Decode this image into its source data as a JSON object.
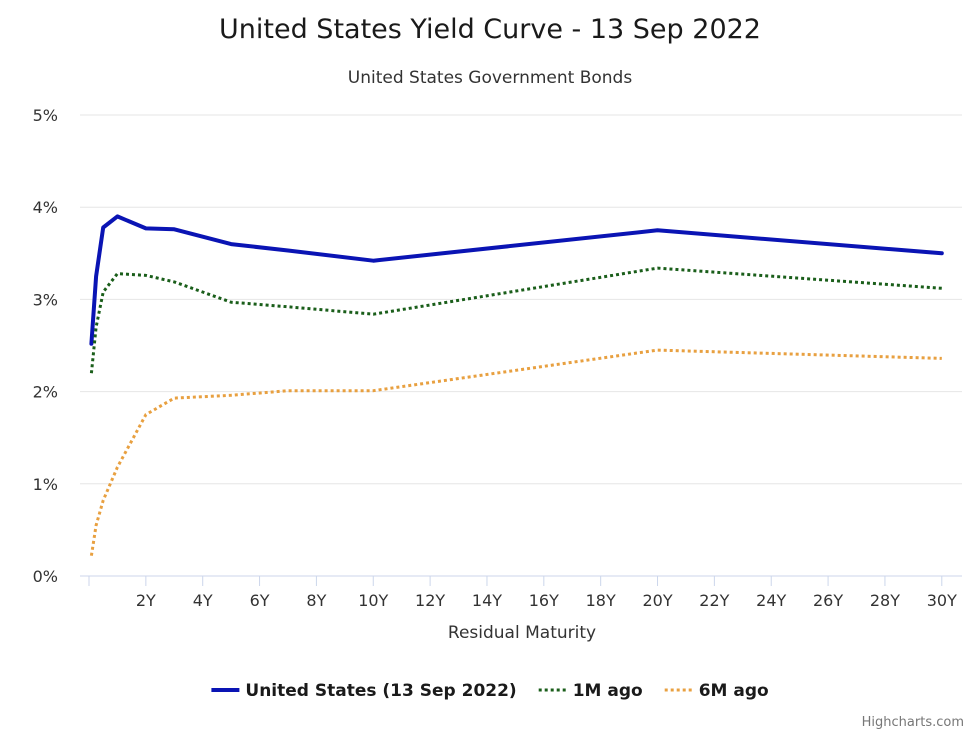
{
  "chart_data": {
    "type": "line",
    "title": "United States Yield Curve - 13 Sep 2022",
    "subtitle": "United States Government Bonds",
    "xlabel": "Residual Maturity",
    "ylabel": "",
    "xlim": [
      0,
      30.5
    ],
    "ylim": [
      0,
      5
    ],
    "x_ticks": [
      {
        "value": 2,
        "label": "2Y"
      },
      {
        "value": 4,
        "label": "4Y"
      },
      {
        "value": 6,
        "label": "6Y"
      },
      {
        "value": 8,
        "label": "8Y"
      },
      {
        "value": 10,
        "label": "10Y"
      },
      {
        "value": 12,
        "label": "12Y"
      },
      {
        "value": 14,
        "label": "14Y"
      },
      {
        "value": 16,
        "label": "16Y"
      },
      {
        "value": 18,
        "label": "18Y"
      },
      {
        "value": 20,
        "label": "20Y"
      },
      {
        "value": 22,
        "label": "22Y"
      },
      {
        "value": 24,
        "label": "24Y"
      },
      {
        "value": 26,
        "label": "26Y"
      },
      {
        "value": 28,
        "label": "28Y"
      },
      {
        "value": 30,
        "label": "30Y"
      }
    ],
    "y_ticks": [
      {
        "value": 0,
        "label": "0%"
      },
      {
        "value": 1,
        "label": "1%"
      },
      {
        "value": 2,
        "label": "2%"
      },
      {
        "value": 3,
        "label": "3%"
      },
      {
        "value": 4,
        "label": "4%"
      },
      {
        "value": 5,
        "label": "5%"
      }
    ],
    "grid": true,
    "legend_position": "bottom-center",
    "x": [
      0.083,
      0.25,
      0.5,
      1,
      2,
      3,
      5,
      7,
      10,
      20,
      30
    ],
    "series": [
      {
        "name": "United States (13 Sep 2022)",
        "color": "#0a14b4",
        "style": "solid",
        "values": [
          2.52,
          3.25,
          3.78,
          3.9,
          3.77,
          3.76,
          3.6,
          3.53,
          3.42,
          3.75,
          3.5
        ]
      },
      {
        "name": "1M ago",
        "color": "#1a5e1a",
        "style": "dotted",
        "values": [
          2.2,
          2.7,
          3.08,
          3.28,
          3.26,
          3.19,
          2.97,
          2.92,
          2.84,
          3.34,
          3.12
        ]
      },
      {
        "name": "6M ago",
        "color": "#e8a040",
        "style": "dotted",
        "values": [
          0.22,
          0.55,
          0.82,
          1.18,
          1.75,
          1.93,
          1.96,
          2.01,
          2.01,
          2.45,
          2.36
        ]
      }
    ]
  },
  "credits": "Highcharts.com"
}
